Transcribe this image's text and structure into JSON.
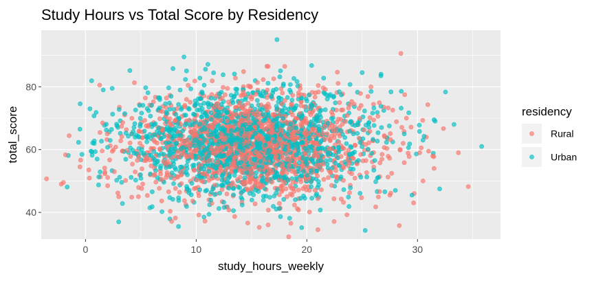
{
  "chart_data": {
    "type": "scatter",
    "title": "Study Hours vs Total Score by Residency",
    "xlabel": "study_hours_weekly",
    "ylabel": "total_score",
    "xlim": [
      -4,
      37.5
    ],
    "ylim": [
      31.5,
      98
    ],
    "x_ticks": [
      0,
      10,
      20,
      30
    ],
    "y_ticks": [
      40,
      60,
      80
    ],
    "grid": true,
    "legend": {
      "title": "residency",
      "placement": "right"
    },
    "point_count_per_series": 1500,
    "series": [
      {
        "name": "Rural",
        "color": "#F8766D",
        "x_center": 15.3,
        "x_spread": 5.6,
        "y_center": 61.5,
        "y_spread": 8.6,
        "outliers": [
          {
            "x": -2.0,
            "y": 49.5
          },
          {
            "x": -0.5,
            "y": 54.5
          },
          {
            "x": 0.3,
            "y": 53.5
          },
          {
            "x": 29.0,
            "y": 70.0
          },
          {
            "x": 30.2,
            "y": 59.0
          },
          {
            "x": 31.0,
            "y": 59.5
          },
          {
            "x": 33.7,
            "y": 59.0
          },
          {
            "x": 30.5,
            "y": 50.0
          },
          {
            "x": 29.7,
            "y": 46.0
          },
          {
            "x": 31.5,
            "y": 54.0
          },
          {
            "x": 16.5,
            "y": 86.5
          },
          {
            "x": 18.0,
            "y": 86.5
          },
          {
            "x": 16.5,
            "y": 36.0
          },
          {
            "x": 21.0,
            "y": 34.5
          },
          {
            "x": 28.7,
            "y": 62.0
          },
          {
            "x": 27.5,
            "y": 45.5
          },
          {
            "x": 2.0,
            "y": 48.5
          },
          {
            "x": 3.0,
            "y": 45.0
          }
        ]
      },
      {
        "name": "Urban",
        "color": "#00BFC4",
        "x_center": 15.0,
        "x_spread": 5.6,
        "y_center": 62.0,
        "y_spread": 8.6,
        "outliers": [
          {
            "x": -0.5,
            "y": 66.5
          },
          {
            "x": 0.4,
            "y": 73.0
          },
          {
            "x": 0.5,
            "y": 59.5
          },
          {
            "x": 1.6,
            "y": 79.0
          },
          {
            "x": 8.9,
            "y": 89.5
          },
          {
            "x": 17.3,
            "y": 95.0
          },
          {
            "x": 35.8,
            "y": 61.0
          },
          {
            "x": 33.3,
            "y": 68.0
          },
          {
            "x": 31.5,
            "y": 69.5
          },
          {
            "x": 28.0,
            "y": 47.0
          },
          {
            "x": 29.5,
            "y": 45.5
          },
          {
            "x": 32.0,
            "y": 47.5
          },
          {
            "x": 3.0,
            "y": 37.0
          },
          {
            "x": 8.4,
            "y": 35.5
          },
          {
            "x": 26.7,
            "y": 84.0
          },
          {
            "x": 25.0,
            "y": 84.5
          },
          {
            "x": 28.8,
            "y": 65.0
          },
          {
            "x": 30.5,
            "y": 63.0
          }
        ]
      }
    ]
  }
}
